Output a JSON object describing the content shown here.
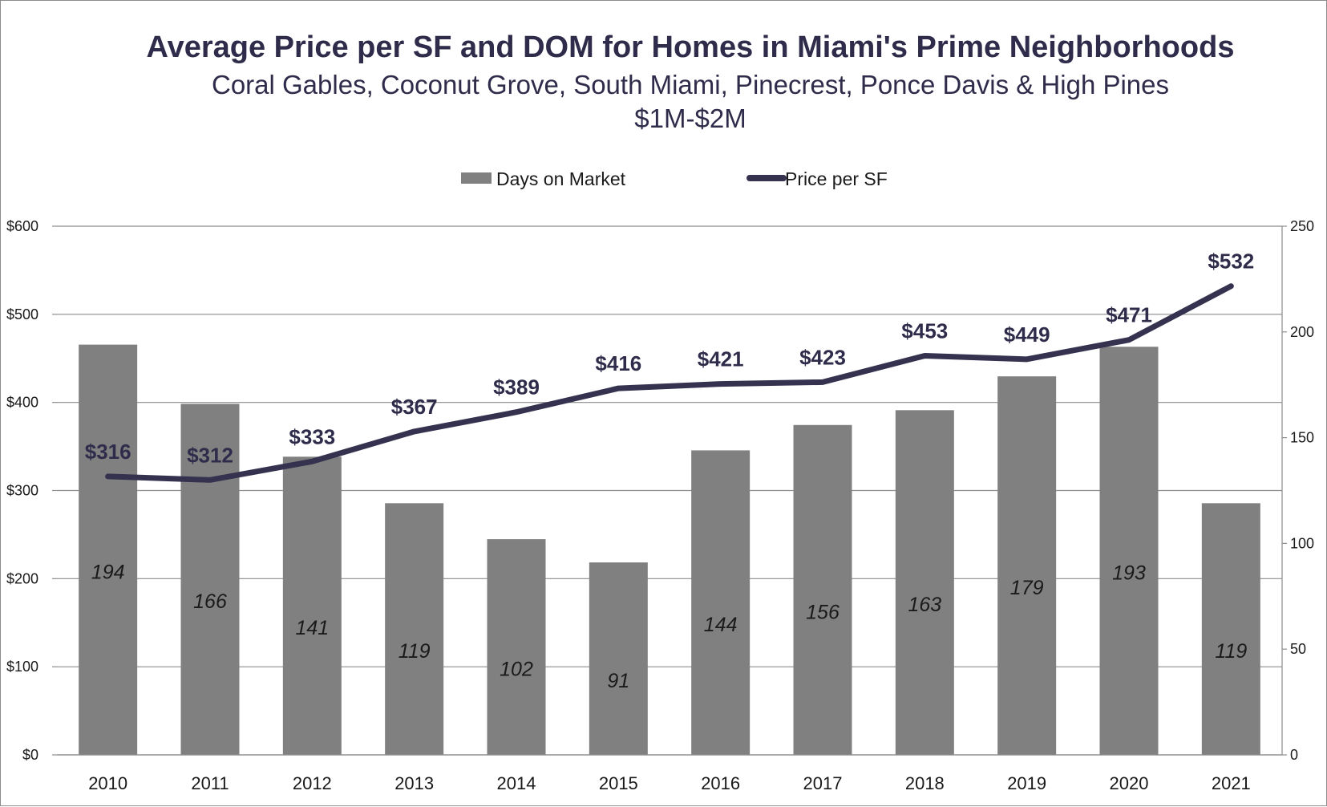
{
  "colors": {
    "bar": "#808080",
    "line": "#35324f",
    "grid": "#8c8c8c",
    "text": "#2e2c4a"
  },
  "chart_data": {
    "type": "bar+line",
    "title": "Average Price per SF and DOM for Homes in Miami's Prime Neighborhoods",
    "subtitle": "Coral Gables, Coconut Grove, South Miami, Pinecrest, Ponce Davis & High Pines",
    "subtitle2": "$1M-$2M",
    "legend_position": "top",
    "categories": [
      "2010",
      "2011",
      "2012",
      "2013",
      "2014",
      "2015",
      "2016",
      "2017",
      "2018",
      "2019",
      "2020",
      "2021"
    ],
    "series": [
      {
        "name": "Days on Market",
        "type": "bar",
        "axis": "right",
        "values": [
          194,
          166,
          141,
          119,
          102,
          91,
          144,
          156,
          163,
          179,
          193,
          119
        ],
        "labels": [
          "194",
          "166",
          "141",
          "119",
          "102",
          "91",
          "144",
          "156",
          "163",
          "179",
          "193",
          "119"
        ]
      },
      {
        "name": "Price per SF",
        "type": "line",
        "axis": "left",
        "values": [
          316,
          312,
          333,
          367,
          389,
          416,
          421,
          423,
          453,
          449,
          471,
          532
        ],
        "labels": [
          "$316",
          "$312",
          "$333",
          "$367",
          "$389",
          "$416",
          "$421",
          "$423",
          "$453",
          "$449",
          "$471",
          "$532"
        ]
      }
    ],
    "left_axis": {
      "ylim": [
        0,
        600
      ],
      "ticks": [
        0,
        100,
        200,
        300,
        400,
        500,
        600
      ],
      "tick_labels": [
        "$0",
        "$100",
        "$200",
        "$300",
        "$400",
        "$500",
        "$600"
      ]
    },
    "right_axis": {
      "ylim": [
        0,
        250
      ],
      "ticks": [
        0,
        50,
        100,
        150,
        200,
        250
      ],
      "tick_labels": [
        "0",
        "50",
        "100",
        "150",
        "200",
        "250"
      ]
    },
    "grid": true
  }
}
